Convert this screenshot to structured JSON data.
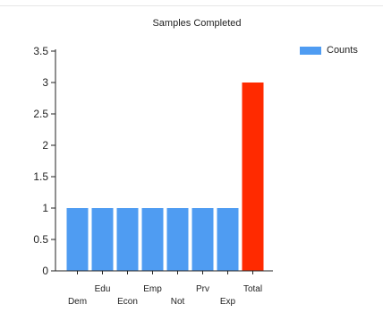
{
  "chart_data": {
    "type": "bar",
    "title": "Samples Completed",
    "categories": [
      "Dem",
      "Edu",
      "Econ",
      "Emp",
      "Not",
      "Prv",
      "Exp",
      "Total"
    ],
    "tick_labels": [
      "0",
      "0.5",
      "1",
      "1.5",
      "2",
      "2.5",
      "3",
      "3.5"
    ],
    "series": [
      {
        "name": "Counts",
        "values": [
          1,
          1,
          1,
          1,
          1,
          1,
          1,
          3
        ]
      }
    ],
    "ylim": [
      0,
      3.5
    ],
    "yticks": [
      0,
      0.5,
      1,
      1.5,
      2,
      2.5,
      3,
      3.5
    ],
    "grid": false,
    "legend_position": "top-right",
    "colors": {
      "series": "#4f9cf2",
      "highlight": "#ff2a00",
      "axis": "#222222"
    },
    "highlight_category": "Total"
  }
}
